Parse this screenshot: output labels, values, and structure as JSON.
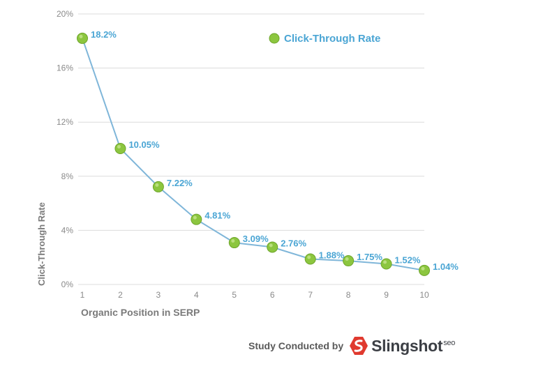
{
  "chart_data": {
    "type": "line",
    "x": [
      1,
      2,
      3,
      4,
      5,
      6,
      7,
      8,
      9,
      10
    ],
    "series": [
      {
        "name": "Click-Through Rate",
        "values": [
          18.2,
          10.05,
          7.22,
          4.81,
          3.09,
          2.76,
          1.88,
          1.75,
          1.52,
          1.04
        ],
        "labels": [
          "18.2%",
          "10.05%",
          "7.22%",
          "4.81%",
          "3.09%",
          "2.76%",
          "1.88%",
          "1.75%",
          "1.52%",
          "1.04%"
        ]
      }
    ],
    "xlabel": "Organic Position in SERP",
    "ylabel": "Click-Through Rate",
    "ylim": [
      0,
      20
    ],
    "yticks": [
      0,
      4,
      8,
      12,
      16,
      20
    ],
    "ytick_labels": [
      "0%",
      "4%",
      "8%",
      "12%",
      "16%",
      "20%"
    ],
    "xtick_labels": [
      "1",
      "2",
      "3",
      "4",
      "5",
      "6",
      "7",
      "8",
      "9",
      "10"
    ],
    "grid": "horizontal",
    "legend_position": "top-right",
    "colors": {
      "line": "#7fb6d9",
      "marker_fill": "#8cc63f",
      "marker_stroke": "#6ea52b",
      "data_label": "#4aa5d4",
      "legend_text": "#4aa5d4",
      "grid": "#dcdcdc",
      "tick_label": "#8a8a8a",
      "axis_title": "#7a7a7a"
    }
  },
  "credit": {
    "text": "Study Conducted by",
    "brand": "Slingshot",
    "brand_suffix": "seo",
    "brand_color": "#e03a2f"
  }
}
